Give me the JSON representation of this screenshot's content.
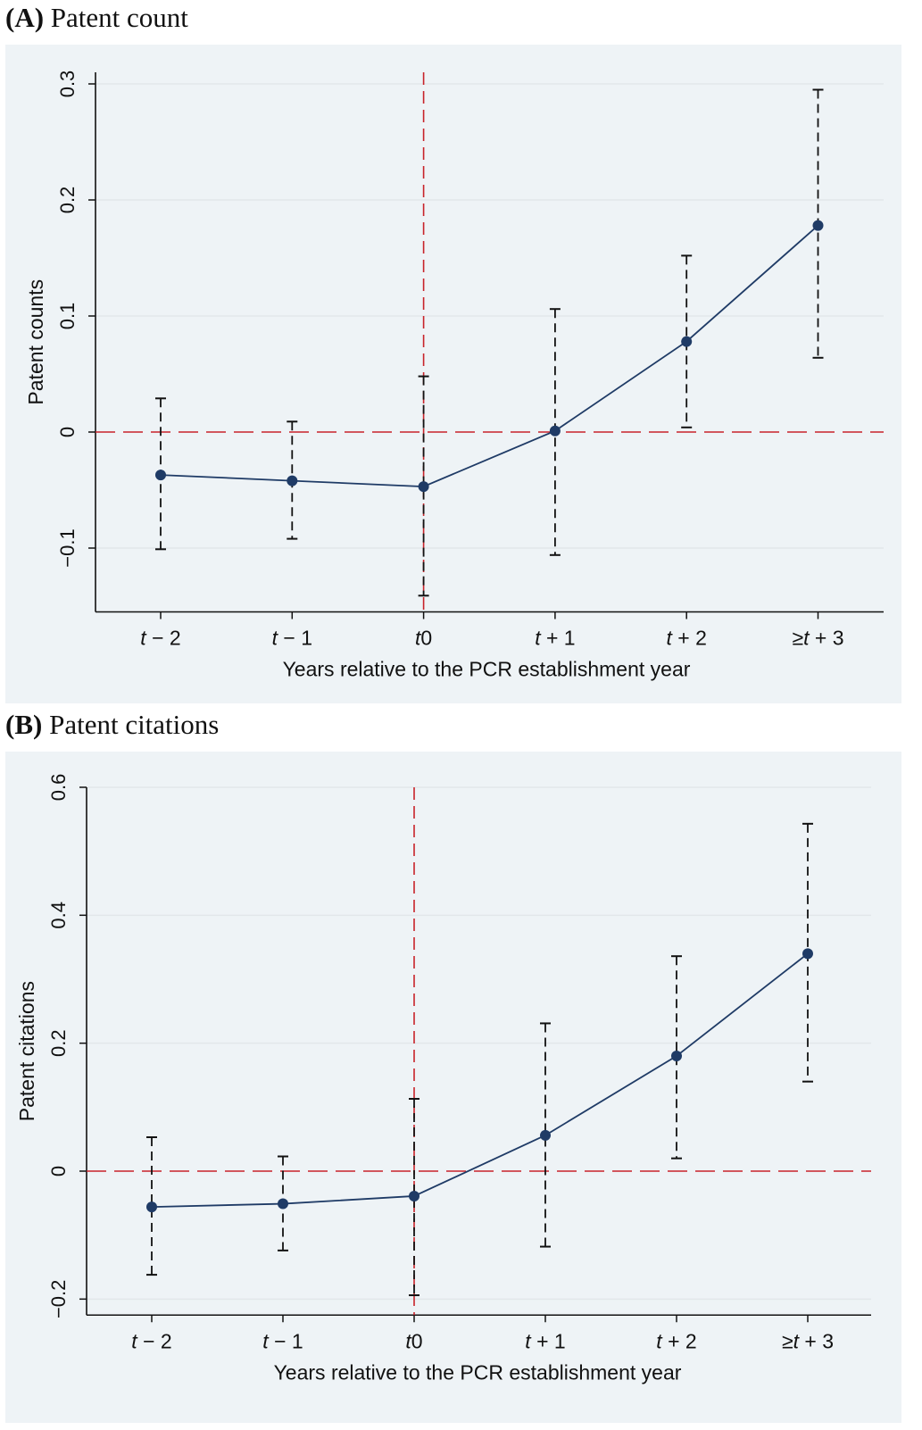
{
  "chart_data": [
    {
      "type": "line",
      "panel_letter": "(A)",
      "title": "Patent count",
      "xlabel": "Years relative to the PCR establishment year",
      "ylabel": "Patent counts",
      "categories": [
        {
          "pre": "",
          "var": "t",
          "post": " − 2"
        },
        {
          "pre": "",
          "var": "t",
          "post": " − 1"
        },
        {
          "pre": "",
          "var": "t",
          "post": "0"
        },
        {
          "pre": "",
          "var": "t",
          "post": " + 1"
        },
        {
          "pre": "",
          "var": "t",
          "post": " + 2"
        },
        {
          "pre": "≥",
          "var": "t",
          "post": " + 3"
        }
      ],
      "yticks": [
        -0.1,
        0,
        0.1,
        0.2,
        0.3
      ],
      "ytick_labels": [
        "−0.1",
        "0",
        "0.1",
        "0.2",
        "0.3"
      ],
      "ylim": [
        -0.155,
        0.31
      ],
      "estimates": [
        -0.037,
        -0.042,
        -0.047,
        0.001,
        0.078,
        0.178
      ],
      "ci_low": [
        -0.101,
        -0.092,
        -0.141,
        -0.106,
        0.004,
        0.064
      ],
      "ci_high": [
        0.029,
        0.009,
        0.048,
        0.106,
        0.152,
        0.295
      ],
      "reference_x_category": 2,
      "reference_y": 0,
      "grid": true,
      "colors": {
        "series": "#1f3b66",
        "reference": "#c8232a",
        "ci": "#111111",
        "grid": "#e2e7ea",
        "background": "#eef3f6"
      }
    },
    {
      "type": "line",
      "panel_letter": "(B)",
      "title": "Patent citations",
      "xlabel": "Years relative to the PCR establishment year",
      "ylabel": "Patent citations",
      "categories": [
        {
          "pre": "",
          "var": "t",
          "post": " − 2"
        },
        {
          "pre": "",
          "var": "t",
          "post": " − 1"
        },
        {
          "pre": "",
          "var": "t",
          "post": "0"
        },
        {
          "pre": "",
          "var": "t",
          "post": " + 1"
        },
        {
          "pre": "",
          "var": "t",
          "post": " + 2"
        },
        {
          "pre": "≥",
          "var": "t",
          "post": " + 3"
        }
      ],
      "yticks": [
        -0.2,
        0,
        0.2,
        0.4,
        0.6
      ],
      "ytick_labels": [
        "−0.2",
        "0",
        "0.2",
        "0.4",
        "0.6"
      ],
      "ylim": [
        -0.225,
        0.6
      ],
      "estimates": [
        -0.056,
        -0.051,
        -0.039,
        0.056,
        0.18,
        0.34
      ],
      "ci_low": [
        -0.162,
        -0.124,
        -0.194,
        -0.118,
        0.02,
        0.14
      ],
      "ci_high": [
        0.053,
        0.023,
        0.113,
        0.231,
        0.336,
        0.543
      ],
      "reference_x_category": 2,
      "reference_y": 0,
      "grid": true,
      "colors": {
        "series": "#1f3b66",
        "reference": "#c8232a",
        "ci": "#111111",
        "grid": "#e2e7ea",
        "background": "#eef3f6"
      }
    }
  ]
}
